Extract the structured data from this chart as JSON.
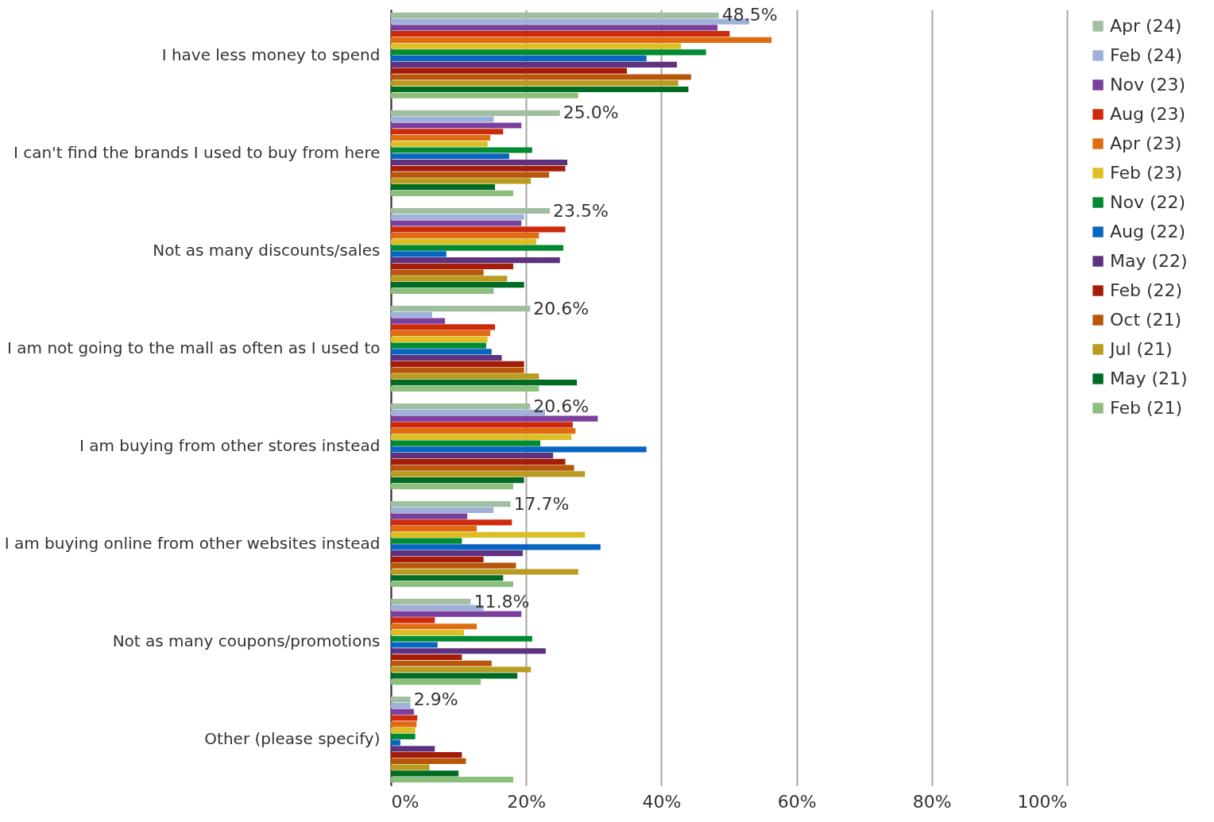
{
  "chart_data": {
    "type": "bar",
    "orientation": "horizontal",
    "categories": [
      "I have less money to spend",
      "I can't find the brands I used to buy from here",
      "Not as many discounts/sales",
      "I am not going to the mall as often as I used to",
      "I am buying from other stores instead",
      "I am buying online from other websites instead",
      "Not as many coupons/promotions",
      "Other (please specify)"
    ],
    "series": [
      {
        "name": "Apr (24)",
        "color": "#9fbfa0",
        "values": [
          48.5,
          25.0,
          23.5,
          20.6,
          20.6,
          17.7,
          11.8,
          2.9
        ],
        "value_labels": [
          "48.5%",
          "25.0%",
          "23.5%",
          "20.6%",
          "20.6%",
          "17.7%",
          "11.8%",
          "2.9%"
        ]
      },
      {
        "name": "Feb (24)",
        "color": "#a0b1d9",
        "values": [
          53.0,
          15.2,
          19.7,
          6.1,
          22.8,
          15.2,
          13.7,
          2.9
        ]
      },
      {
        "name": "Nov (23)",
        "color": "#7b3f9e",
        "values": [
          48.3,
          19.3,
          19.3,
          8.0,
          30.6,
          11.3,
          19.3,
          3.4
        ]
      },
      {
        "name": "Aug (23)",
        "color": "#cc2a0a",
        "values": [
          50.1,
          16.6,
          25.8,
          15.4,
          26.9,
          17.9,
          6.5,
          3.9
        ]
      },
      {
        "name": "Apr (23)",
        "color": "#e06c12",
        "values": [
          56.3,
          14.7,
          21.9,
          14.7,
          27.3,
          12.7,
          12.7,
          3.8
        ]
      },
      {
        "name": "Feb (23)",
        "color": "#ddbf25",
        "values": [
          42.9,
          14.3,
          21.5,
          14.3,
          26.7,
          28.7,
          10.8,
          3.6
        ]
      },
      {
        "name": "Nov (22)",
        "color": "#008a32",
        "values": [
          46.6,
          20.9,
          25.5,
          14.1,
          22.1,
          10.5,
          20.9,
          3.6
        ]
      },
      {
        "name": "Aug (22)",
        "color": "#0866c2",
        "values": [
          37.8,
          17.5,
          8.2,
          14.9,
          37.8,
          31.0,
          6.9,
          1.4
        ]
      },
      {
        "name": "May (22)",
        "color": "#60317f",
        "values": [
          42.3,
          26.1,
          25.0,
          16.4,
          24.0,
          19.5,
          22.9,
          6.5
        ]
      },
      {
        "name": "Feb (22)",
        "color": "#a51c08",
        "values": [
          34.9,
          25.8,
          18.1,
          19.7,
          25.8,
          13.7,
          10.5,
          10.5
        ]
      },
      {
        "name": "Oct (21)",
        "color": "#b8560c",
        "values": [
          44.4,
          23.4,
          13.7,
          19.7,
          27.1,
          18.5,
          14.9,
          11.1
        ]
      },
      {
        "name": "Jul (21)",
        "color": "#b89b1f",
        "values": [
          42.5,
          20.7,
          17.2,
          21.9,
          28.7,
          27.7,
          20.7,
          5.7
        ]
      },
      {
        "name": "May (21)",
        "color": "#006b23",
        "values": [
          44.0,
          15.4,
          19.7,
          27.5,
          19.7,
          16.6,
          18.7,
          10.0
        ]
      },
      {
        "name": "Feb (21)",
        "color": "#8cbf7c",
        "values": [
          27.7,
          18.1,
          15.2,
          21.9,
          18.1,
          18.1,
          13.3,
          18.1
        ]
      }
    ],
    "xlim": [
      0,
      100
    ],
    "xticks": [
      {
        "value": 0,
        "label": "0%"
      },
      {
        "value": 20,
        "label": "20%"
      },
      {
        "value": 40,
        "label": "40%"
      },
      {
        "value": 60,
        "label": "60%"
      },
      {
        "value": 80,
        "label": "80%"
      },
      {
        "value": 100,
        "label": "100%"
      }
    ],
    "grid": "x",
    "legend": "right"
  }
}
